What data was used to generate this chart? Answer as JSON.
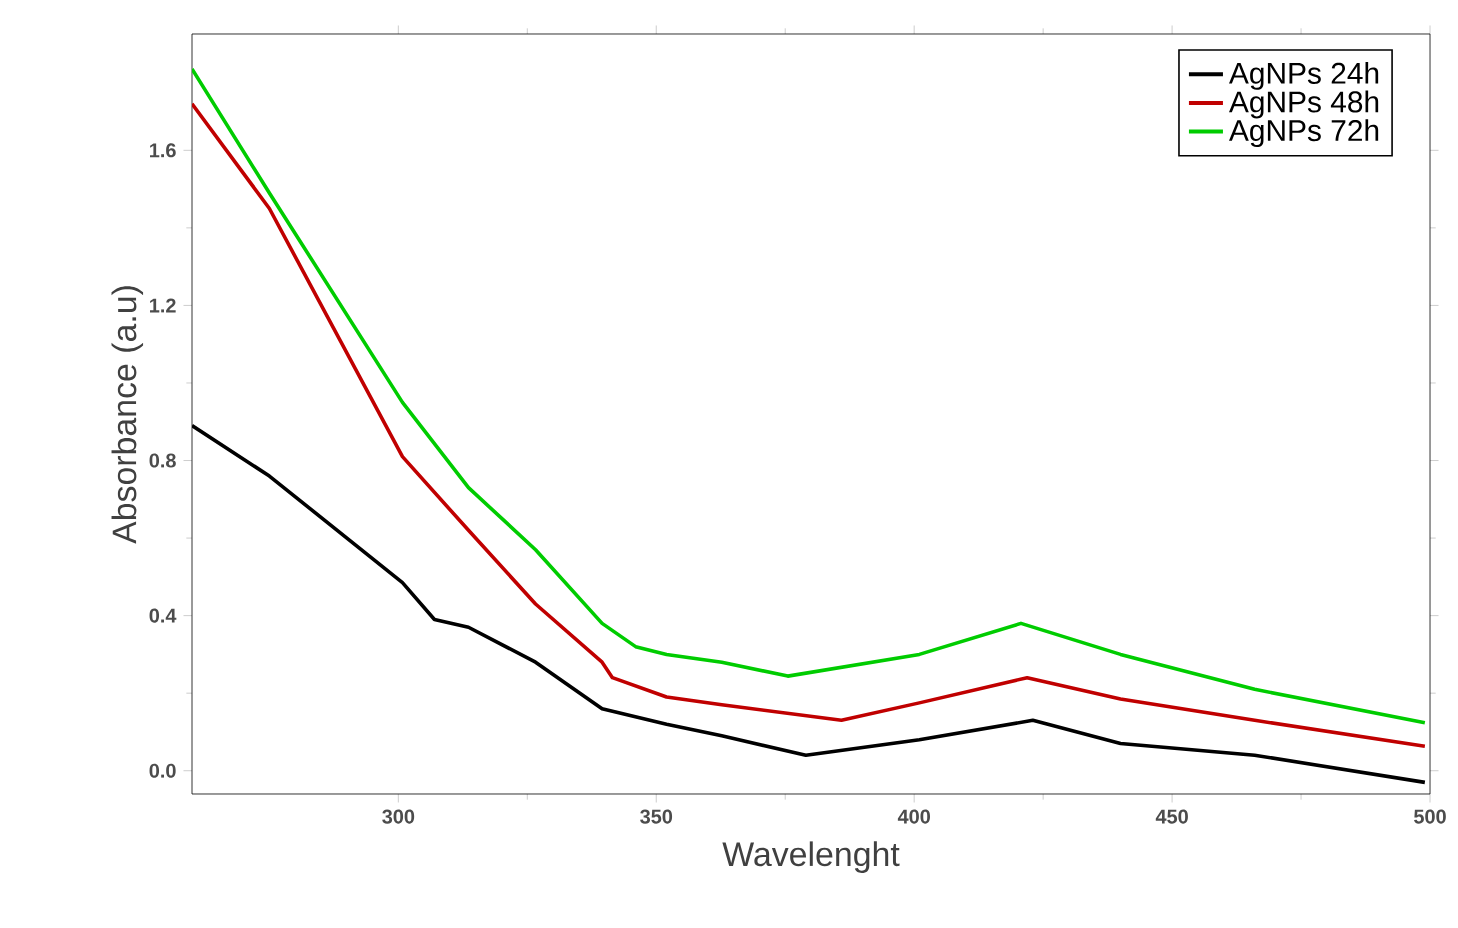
{
  "chart_data": {
    "type": "line",
    "xlabel": "Wavelenght",
    "ylabel": "Absorbance (a.u)",
    "xlim": [
      260,
      500
    ],
    "xticks": [
      300,
      350,
      400,
      450,
      500
    ],
    "ylim": [
      -0.06,
      1.9
    ],
    "yticks": [
      {
        "value": 0,
        "label": "0.0"
      },
      0.4,
      0.8,
      1.2,
      1.6
    ],
    "legend": "top right",
    "grid": false,
    "marker": "none",
    "line_style": "solid",
    "series": [
      {
        "name": "AgNPs  24h",
        "color": "#000000",
        "x": [
          260,
          275,
          300.8,
          307,
          313.6,
          326.6,
          339.5,
          352,
          362.7,
          379,
          401,
          423,
          440,
          466,
          499
        ],
        "values": [
          0.89,
          0.76,
          0.485,
          0.39,
          0.37,
          0.28,
          0.16,
          0.12,
          0.09,
          0.04,
          0.08,
          0.13,
          0.07,
          0.04,
          -0.03
        ]
      },
      {
        "name": "AgNPs  48h",
        "color": "#c00000",
        "x": [
          260,
          275,
          300.8,
          313.6,
          326.6,
          339.5,
          341.5,
          352,
          362.7,
          385.9,
          401,
          421.9,
          440,
          466,
          499
        ],
        "values": [
          1.72,
          1.45,
          0.81,
          0.62,
          0.43,
          0.28,
          0.24,
          0.19,
          0.17,
          0.13,
          0.175,
          0.24,
          0.185,
          0.13,
          0.063
        ]
      },
      {
        "name": "AgNPs  72h",
        "color": "#00cc00",
        "x": [
          260,
          275,
          300.8,
          313.6,
          326.6,
          339.5,
          346,
          352,
          362.7,
          375.5,
          401,
          420.7,
          440,
          466,
          499
        ],
        "values": [
          1.81,
          1.49,
          0.95,
          0.73,
          0.57,
          0.38,
          0.32,
          0.3,
          0.28,
          0.244,
          0.3,
          0.38,
          0.3,
          0.21,
          0.124
        ]
      }
    ]
  }
}
